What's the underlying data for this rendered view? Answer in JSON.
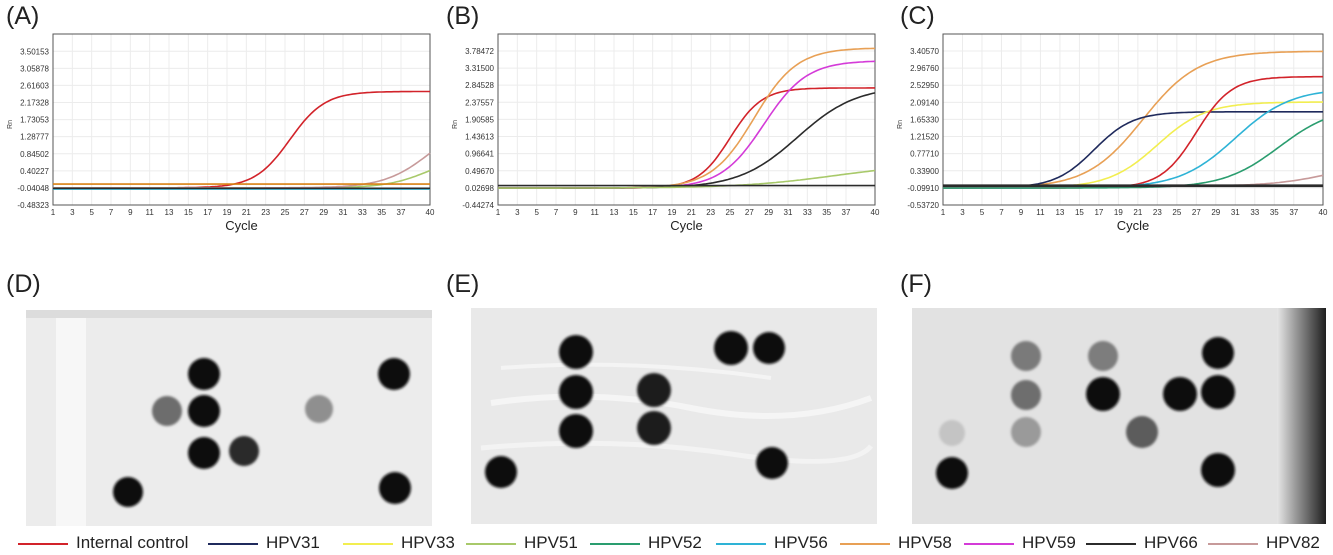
{
  "panel_labels": {
    "a": "(A)",
    "b": "(B)",
    "c": "(C)",
    "d": "(D)",
    "e": "(E)",
    "f": "(F)"
  },
  "colors": {
    "internal_control": "#d2232a",
    "hpv31": "#1f2a5c",
    "hpv33": "#f2ee50",
    "hpv51": "#a8c96a",
    "hpv52": "#2a9d6f",
    "hpv56": "#2eb3d6",
    "hpv58": "#e8a055",
    "hpv59": "#d43bd8",
    "hpv66": "#2b2b2b",
    "hpv82": "#c79a9a",
    "baseline_orange": "#d98012"
  },
  "legend": [
    {
      "label": "Internal control",
      "color": "#d2232a"
    },
    {
      "label": "HPV31",
      "color": "#1f2a5c"
    },
    {
      "label": "HPV33",
      "color": "#f2ee50"
    },
    {
      "label": "HPV51",
      "color": "#a8c96a"
    },
    {
      "label": "HPV52",
      "color": "#2a9d6f"
    },
    {
      "label": "HPV56",
      "color": "#2eb3d6"
    },
    {
      "label": "HPV58",
      "color": "#e8a055"
    },
    {
      "label": "HPV59",
      "color": "#d43bd8"
    },
    {
      "label": "HPV66",
      "color": "#2b2b2b"
    },
    {
      "label": "HPV82",
      "color": "#c79a9a"
    }
  ],
  "chart_data": [
    {
      "id": "A",
      "type": "line",
      "xlabel": "Cycle",
      "ylabel": "Rn",
      "xlim": [
        1,
        40
      ],
      "ylim": [
        -0.48323,
        3.94928
      ],
      "xticks": [
        "1",
        "3",
        "5",
        "7",
        "9",
        "11",
        "13",
        "15",
        "17",
        "19",
        "21",
        "23",
        "25",
        "27",
        "29",
        "31",
        "33",
        "35",
        "37",
        "40"
      ],
      "yticks": [
        "3.50153",
        "3.05878",
        "2.61603",
        "2.17328",
        "1.73053",
        "1.28777",
        "0.84502",
        "0.40227",
        "-0.04048",
        "-0.48323"
      ],
      "series": [
        {
          "color": "#d2232a",
          "plateau": 2.5,
          "ct": 25.5,
          "k": 0.55,
          "base": -0.04
        },
        {
          "color": "#a8c96a",
          "plateau": 0.9,
          "ct": 40.0,
          "k": 0.45,
          "base": -0.04
        },
        {
          "color": "#c79a9a",
          "plateau": 1.8,
          "ct": 40.0,
          "k": 0.42,
          "base": -0.04
        },
        {
          "color": "#d98012",
          "flat": 0.06
        },
        {
          "color": "#1f2a5c",
          "flat": -0.06
        },
        {
          "color": "#2eb3d6",
          "flat": -0.07
        },
        {
          "color": "#2b2b2b",
          "flat": -0.05
        }
      ]
    },
    {
      "id": "B",
      "type": "line",
      "xlabel": "Cycle",
      "ylabel": "Rn",
      "xlim": [
        1,
        40
      ],
      "ylim": [
        -0.44274,
        4.25
      ],
      "xticks": [
        "1",
        "3",
        "5",
        "7",
        "9",
        "11",
        "13",
        "15",
        "17",
        "19",
        "21",
        "23",
        "25",
        "27",
        "29",
        "31",
        "33",
        "35",
        "37",
        "40"
      ],
      "yticks": [
        "3.78472",
        "3.31500",
        "2.84528",
        "2.37557",
        "1.90585",
        "1.43613",
        "0.96641",
        "0.49670",
        "0.02698",
        "-0.44274"
      ],
      "series": [
        {
          "color": "#d2232a",
          "plateau": 2.75,
          "ct": 25.0,
          "k": 0.6,
          "base": 0.02
        },
        {
          "color": "#e8a055",
          "plateau": 3.85,
          "ct": 27.5,
          "k": 0.45,
          "base": 0.02
        },
        {
          "color": "#d43bd8",
          "plateau": 3.5,
          "ct": 28.5,
          "k": 0.45,
          "base": 0.02
        },
        {
          "color": "#2b2b2b",
          "plateau": 2.8,
          "ct": 32.0,
          "k": 0.33,
          "base": 0.02
        },
        {
          "color": "#a8c96a",
          "plateau": 0.7,
          "ct": 36.0,
          "k": 0.2,
          "base": 0.02
        },
        {
          "color": "#2b2b2b",
          "flat": 0.09
        }
      ]
    },
    {
      "id": "C",
      "type": "line",
      "xlabel": "Cycle",
      "ylabel": "Rn",
      "xlim": [
        1,
        40
      ],
      "ylim": [
        -0.5372,
        3.8404
      ],
      "xticks": [
        "1",
        "3",
        "5",
        "7",
        "9",
        "11",
        "13",
        "15",
        "17",
        "19",
        "21",
        "23",
        "25",
        "27",
        "29",
        "31",
        "33",
        "35",
        "37",
        "40"
      ],
      "yticks": [
        "3.40570",
        "2.96760",
        "2.52950",
        "2.09140",
        "1.65330",
        "1.21520",
        "0.77710",
        "0.33900",
        "-0.09910",
        "-0.53720"
      ],
      "series": [
        {
          "color": "#e8a055",
          "plateau": 3.5,
          "ct": 21.5,
          "k": 0.35,
          "base": -0.1
        },
        {
          "color": "#1f2a5c",
          "plateau": 1.95,
          "ct": 16.5,
          "k": 0.5,
          "base": -0.1
        },
        {
          "color": "#f2ee50",
          "plateau": 2.2,
          "ct": 23.0,
          "k": 0.4,
          "base": -0.1
        },
        {
          "color": "#d2232a",
          "plateau": 2.85,
          "ct": 27.0,
          "k": 0.55,
          "base": -0.1
        },
        {
          "color": "#2eb3d6",
          "plateau": 2.55,
          "ct": 31.0,
          "k": 0.35,
          "base": -0.1
        },
        {
          "color": "#2a9d6f",
          "plateau": 2.1,
          "ct": 35.5,
          "k": 0.35,
          "base": -0.1
        },
        {
          "color": "#c79a9a",
          "plateau": 0.8,
          "ct": 42.0,
          "k": 0.3,
          "base": -0.06
        },
        {
          "color": "#2b2b2b",
          "flat": -0.03
        },
        {
          "color": "#2b2b2b",
          "flat": -0.06
        }
      ]
    }
  ]
}
